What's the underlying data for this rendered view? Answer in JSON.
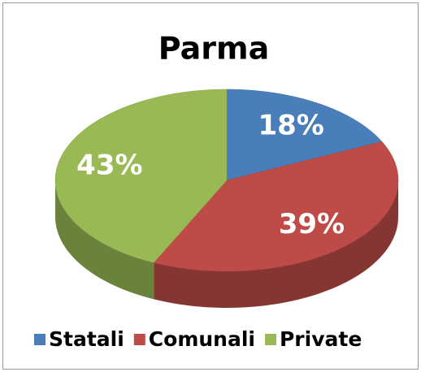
{
  "chart_data": {
    "type": "pie",
    "title": "Parma",
    "categories": [
      "Statali",
      "Comunali",
      "Private"
    ],
    "values": [
      18,
      39,
      43
    ],
    "value_labels": [
      "18%",
      "39%",
      "43%"
    ],
    "colors": [
      "#4a7ebb",
      "#be4b48",
      "#98b954"
    ],
    "legend": "bottom"
  }
}
